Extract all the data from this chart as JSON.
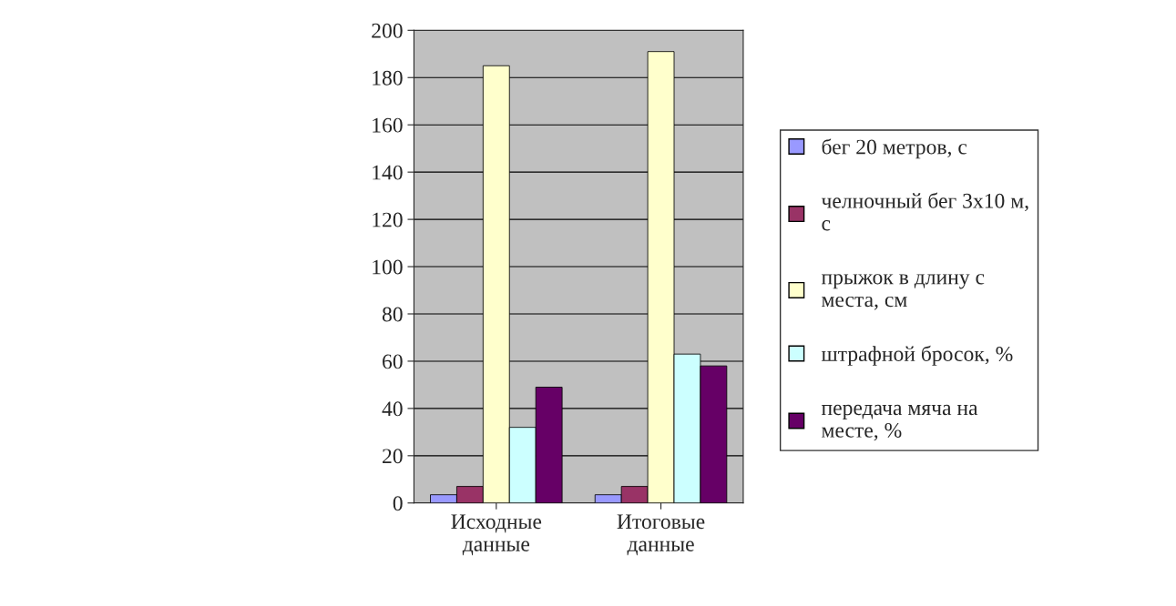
{
  "chart_data": {
    "type": "bar",
    "categories": [
      "Исходные\nданные",
      "Итоговые\nданные"
    ],
    "series": [
      {
        "name": "бег 20 метров, с",
        "color": "#9999ff",
        "values": [
          3.5,
          3.5
        ]
      },
      {
        "name": "челночный бег 3х10 м,\nс",
        "color": "#993366",
        "values": [
          7,
          7
        ]
      },
      {
        "name": "прыжок в длину с\nместа, см",
        "color": "#ffffcc",
        "values": [
          185,
          191
        ]
      },
      {
        "name": "штрафной бросок, %",
        "color": "#ccffff",
        "values": [
          32,
          63
        ]
      },
      {
        "name": "передача мяча на\nместе, %",
        "color": "#660066",
        "values": [
          49,
          58
        ]
      }
    ],
    "ylim": [
      0,
      200
    ],
    "yticks": [
      0,
      20,
      40,
      60,
      80,
      100,
      120,
      140,
      160,
      180,
      200
    ],
    "grid": "y",
    "legend": "right"
  }
}
